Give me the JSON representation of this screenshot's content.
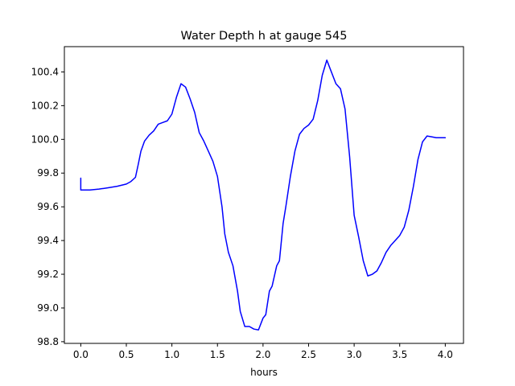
{
  "chart_data": {
    "type": "line",
    "title": "Water Depth h at gauge 545",
    "xlabel": "hours",
    "ylabel": "",
    "xlim": [
      -0.18,
      4.2
    ],
    "ylim": [
      98.79,
      100.55
    ],
    "xticks": [
      {
        "value": 0.0,
        "label": "0.0"
      },
      {
        "value": 0.5,
        "label": "0.5"
      },
      {
        "value": 1.0,
        "label": "1.0"
      },
      {
        "value": 1.5,
        "label": "1.5"
      },
      {
        "value": 2.0,
        "label": "2.0"
      },
      {
        "value": 2.5,
        "label": "2.5"
      },
      {
        "value": 3.0,
        "label": "3.0"
      },
      {
        "value": 3.5,
        "label": "3.5"
      },
      {
        "value": 4.0,
        "label": "4.0"
      }
    ],
    "yticks": [
      {
        "value": 98.8,
        "label": "98.8"
      },
      {
        "value": 99.0,
        "label": "99.0"
      },
      {
        "value": 99.2,
        "label": "99.2"
      },
      {
        "value": 99.4,
        "label": "99.4"
      },
      {
        "value": 99.6,
        "label": "99.6"
      },
      {
        "value": 99.8,
        "label": "99.8"
      },
      {
        "value": 100.0,
        "label": "100.0"
      },
      {
        "value": 100.2,
        "label": "100.2"
      },
      {
        "value": 100.4,
        "label": "100.4"
      }
    ],
    "grid": false,
    "series": [
      {
        "color": "#0000ff",
        "x": [
          0.0,
          0.0,
          0.1,
          0.2,
          0.3,
          0.4,
          0.5,
          0.55,
          0.6,
          0.63,
          0.66,
          0.7,
          0.75,
          0.8,
          0.85,
          0.9,
          0.95,
          1.0,
          1.05,
          1.1,
          1.15,
          1.2,
          1.25,
          1.3,
          1.35,
          1.4,
          1.45,
          1.5,
          1.55,
          1.58,
          1.62,
          1.67,
          1.72,
          1.75,
          1.8,
          1.85,
          1.9,
          1.95,
          2.0,
          2.03,
          2.07,
          2.1,
          2.15,
          2.18,
          2.22,
          2.25,
          2.3,
          2.35,
          2.4,
          2.45,
          2.5,
          2.55,
          2.6,
          2.65,
          2.7,
          2.75,
          2.8,
          2.85,
          2.9,
          2.95,
          3.0,
          3.05,
          3.1,
          3.15,
          3.2,
          3.25,
          3.3,
          3.35,
          3.4,
          3.45,
          3.5,
          3.55,
          3.6,
          3.65,
          3.7,
          3.75,
          3.8,
          3.85,
          3.9,
          3.95,
          4.0
        ],
        "y": [
          99.77,
          99.7,
          99.7,
          99.705,
          99.713,
          99.722,
          99.735,
          99.75,
          99.775,
          99.85,
          99.93,
          99.99,
          100.025,
          100.05,
          100.09,
          100.1,
          100.11,
          100.15,
          100.25,
          100.33,
          100.31,
          100.24,
          100.16,
          100.04,
          99.99,
          99.93,
          99.87,
          99.78,
          99.6,
          99.44,
          99.33,
          99.25,
          99.1,
          98.98,
          98.89,
          98.89,
          98.875,
          98.87,
          98.94,
          98.96,
          99.1,
          99.13,
          99.25,
          99.28,
          99.5,
          99.6,
          99.78,
          99.93,
          100.03,
          100.065,
          100.085,
          100.12,
          100.23,
          100.38,
          100.47,
          100.4,
          100.33,
          100.3,
          100.18,
          99.9,
          99.55,
          99.42,
          99.28,
          99.19,
          99.2,
          99.22,
          99.27,
          99.33,
          99.37,
          99.4,
          99.43,
          99.48,
          99.58,
          99.72,
          99.88,
          99.985,
          100.02,
          100.015,
          100.01,
          100.01,
          100.01
        ]
      }
    ]
  }
}
